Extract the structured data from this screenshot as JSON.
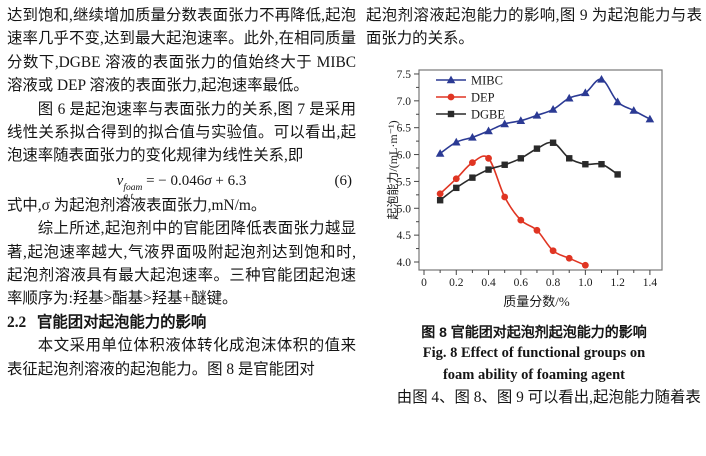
{
  "left_column": {
    "p1": "达到饱和,继续增加质量分数表面张力不再降低,起泡速率几乎不变,达到最大起泡速率。此外,在相同质量分数下,DGBE 溶液的表面张力的值始终大于 MIBC 溶液或 DEP 溶液的表面张力,起泡速率最低。",
    "p2": "图 6 是起泡速率与表面张力的关系,图 7 是采用线性关系拟合得到的拟合值与实验值。可以看出,起泡速率随表面张力的变化规律为线性关系,即",
    "equation": {
      "variable": "v",
      "superscript": "foam",
      "subscript": "g,t",
      "prefix": " = − 0.046",
      "sigma": "σ",
      "suffix": " + 6.3",
      "number": "(6)"
    },
    "p3": "式中,σ 为起泡剂溶液表面张力,mN/m。",
    "p4": "综上所述,起泡剂中的官能团降低表面张力越显著,起泡速率越大,气液界面吸附起泡剂达到饱和时,起泡剂溶液具有最大起泡速率。三种官能团起泡速率顺序为:羟基>酯基>羟基+醚键。",
    "section": {
      "number": "2.2",
      "title": "官能团对起泡能力的影响"
    },
    "p5": "本文采用单位体积液体转化成泡沫体积的值来表征起泡剂溶液的起泡能力。图 8 是官能团对"
  },
  "right_column": {
    "p1": "起泡剂溶液起泡能力的影响,图 9 为起泡能力与表面张力的关系。",
    "figure": {
      "caption_zh": "图 8  官能团对起泡剂起泡能力的影响",
      "caption_en_line1": "Fig. 8  Effect of functional groups on",
      "caption_en_line2": "foam ability of foaming agent"
    },
    "p2": "由图 4、图 8、图 9 可以看出,起泡能力随着表"
  },
  "chart_data": {
    "type": "line",
    "title": "",
    "xlabel": "质量分数/%",
    "ylabel": "起泡能力/(mL·m⁻¹)",
    "xlim": [
      -0.031,
      1.475
    ],
    "ylim": [
      3.851,
      7.574
    ],
    "x_ticks": [
      0,
      0.2,
      0.4,
      0.6,
      0.8,
      1.0,
      1.2,
      1.4
    ],
    "x_tick_labels": [
      "0",
      "0.2",
      "0.4",
      "0.6",
      "0.8",
      "1.0",
      "1.2",
      "1.4"
    ],
    "x_minor_ticks": [
      0.1,
      0.3,
      0.5,
      0.7,
      0.9,
      1.1,
      1.3
    ],
    "y_ticks": [
      4.0,
      4.5,
      5.0,
      5.5,
      6.0,
      6.5,
      7.0,
      7.5
    ],
    "y_tick_labels": [
      "4.0",
      "4.5",
      "5.0",
      "5.5",
      "6.0",
      "6.5",
      "7.0",
      "7.5"
    ],
    "y_minor_ticks": [
      4.25,
      4.75,
      5.25,
      5.75,
      6.25,
      6.75,
      7.25
    ],
    "grid": false,
    "legend_position": "top-left",
    "axis_color": "#777777",
    "tick_color": "#444444",
    "label_color": "#1a1a1a",
    "series": [
      {
        "name": "MIBC",
        "color": "#2b3a94",
        "marker": "triangle",
        "x": [
          0.1,
          0.2,
          0.3,
          0.4,
          0.5,
          0.6,
          0.7,
          0.8,
          0.9,
          1.0,
          1.1,
          1.2,
          1.3,
          1.4
        ],
        "y": [
          6.02,
          6.23,
          6.32,
          6.44,
          6.57,
          6.63,
          6.73,
          6.84,
          7.05,
          7.15,
          7.4,
          6.98,
          6.82,
          6.66
        ]
      },
      {
        "name": "DEP",
        "color": "#e03523",
        "marker": "circle",
        "x": [
          0.1,
          0.2,
          0.3,
          0.4,
          0.5,
          0.6,
          0.7,
          0.8,
          0.9,
          1.0
        ],
        "y": [
          5.27,
          5.55,
          5.85,
          5.93,
          5.21,
          4.78,
          4.59,
          4.21,
          4.07,
          3.94
        ]
      },
      {
        "name": "DGBE",
        "color": "#2a2a2a",
        "marker": "square",
        "x": [
          0.1,
          0.2,
          0.3,
          0.4,
          0.5,
          0.6,
          0.7,
          0.8,
          0.9,
          1.0,
          1.1,
          1.2
        ],
        "y": [
          5.15,
          5.38,
          5.57,
          5.72,
          5.81,
          5.93,
          6.11,
          6.22,
          5.93,
          5.82,
          5.82,
          5.63
        ]
      }
    ]
  }
}
